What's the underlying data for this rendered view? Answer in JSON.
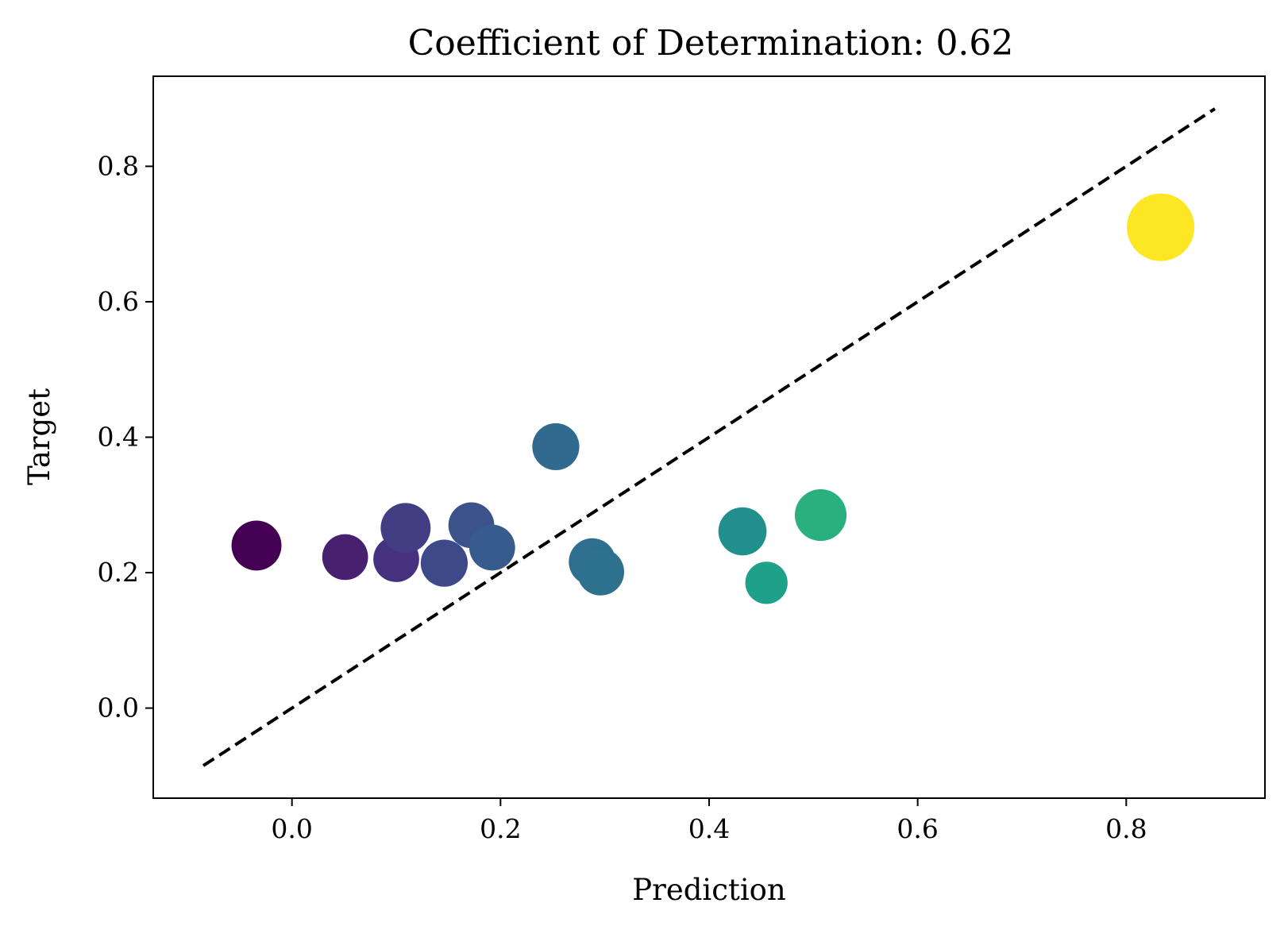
{
  "chart_data": {
    "type": "scatter",
    "title": "Coefficient of Determination: 0.62",
    "xlabel": "Prediction",
    "ylabel": "Target",
    "xlim": [
      -0.133,
      0.933
    ],
    "ylim": [
      -0.133,
      0.933
    ],
    "grid": false,
    "legend": "none",
    "xticks": [
      {
        "value": 0.0,
        "label": "0.0"
      },
      {
        "value": 0.2,
        "label": "0.2"
      },
      {
        "value": 0.4,
        "label": "0.4"
      },
      {
        "value": 0.6,
        "label": "0.6"
      },
      {
        "value": 0.8,
        "label": "0.8"
      }
    ],
    "yticks": [
      {
        "value": 0.0,
        "label": "0.0"
      },
      {
        "value": 0.2,
        "label": "0.2"
      },
      {
        "value": 0.4,
        "label": "0.4"
      },
      {
        "value": 0.6,
        "label": "0.6"
      },
      {
        "value": 0.8,
        "label": "0.8"
      }
    ],
    "reference_line": {
      "style": "dashed",
      "color": "#000000",
      "from": [
        -0.085,
        -0.085
      ],
      "to": [
        0.885,
        0.885
      ]
    },
    "points": [
      {
        "x": -0.034,
        "y": 0.24,
        "size": 0.85,
        "color": "#440154"
      },
      {
        "x": 0.051,
        "y": 0.223,
        "size": 0.78,
        "color": "#472070"
      },
      {
        "x": 0.1,
        "y": 0.22,
        "size": 0.78,
        "color": "#46317e"
      },
      {
        "x": 0.109,
        "y": 0.266,
        "size": 0.85,
        "color": "#433d84"
      },
      {
        "x": 0.146,
        "y": 0.214,
        "size": 0.8,
        "color": "#3e4989"
      },
      {
        "x": 0.172,
        "y": 0.27,
        "size": 0.78,
        "color": "#3b528b"
      },
      {
        "x": 0.192,
        "y": 0.237,
        "size": 0.78,
        "color": "#375b8d"
      },
      {
        "x": 0.253,
        "y": 0.386,
        "size": 0.8,
        "color": "#306a8e"
      },
      {
        "x": 0.288,
        "y": 0.216,
        "size": 0.8,
        "color": "#2e6e8e"
      },
      {
        "x": 0.296,
        "y": 0.201,
        "size": 0.8,
        "color": "#2d718e"
      },
      {
        "x": 0.432,
        "y": 0.261,
        "size": 0.82,
        "color": "#21908d"
      },
      {
        "x": 0.455,
        "y": 0.185,
        "size": 0.72,
        "color": "#1fa088"
      },
      {
        "x": 0.507,
        "y": 0.285,
        "size": 0.88,
        "color": "#2ab07f"
      },
      {
        "x": 0.833,
        "y": 0.71,
        "size": 1.15,
        "color": "#fde725"
      }
    ]
  }
}
